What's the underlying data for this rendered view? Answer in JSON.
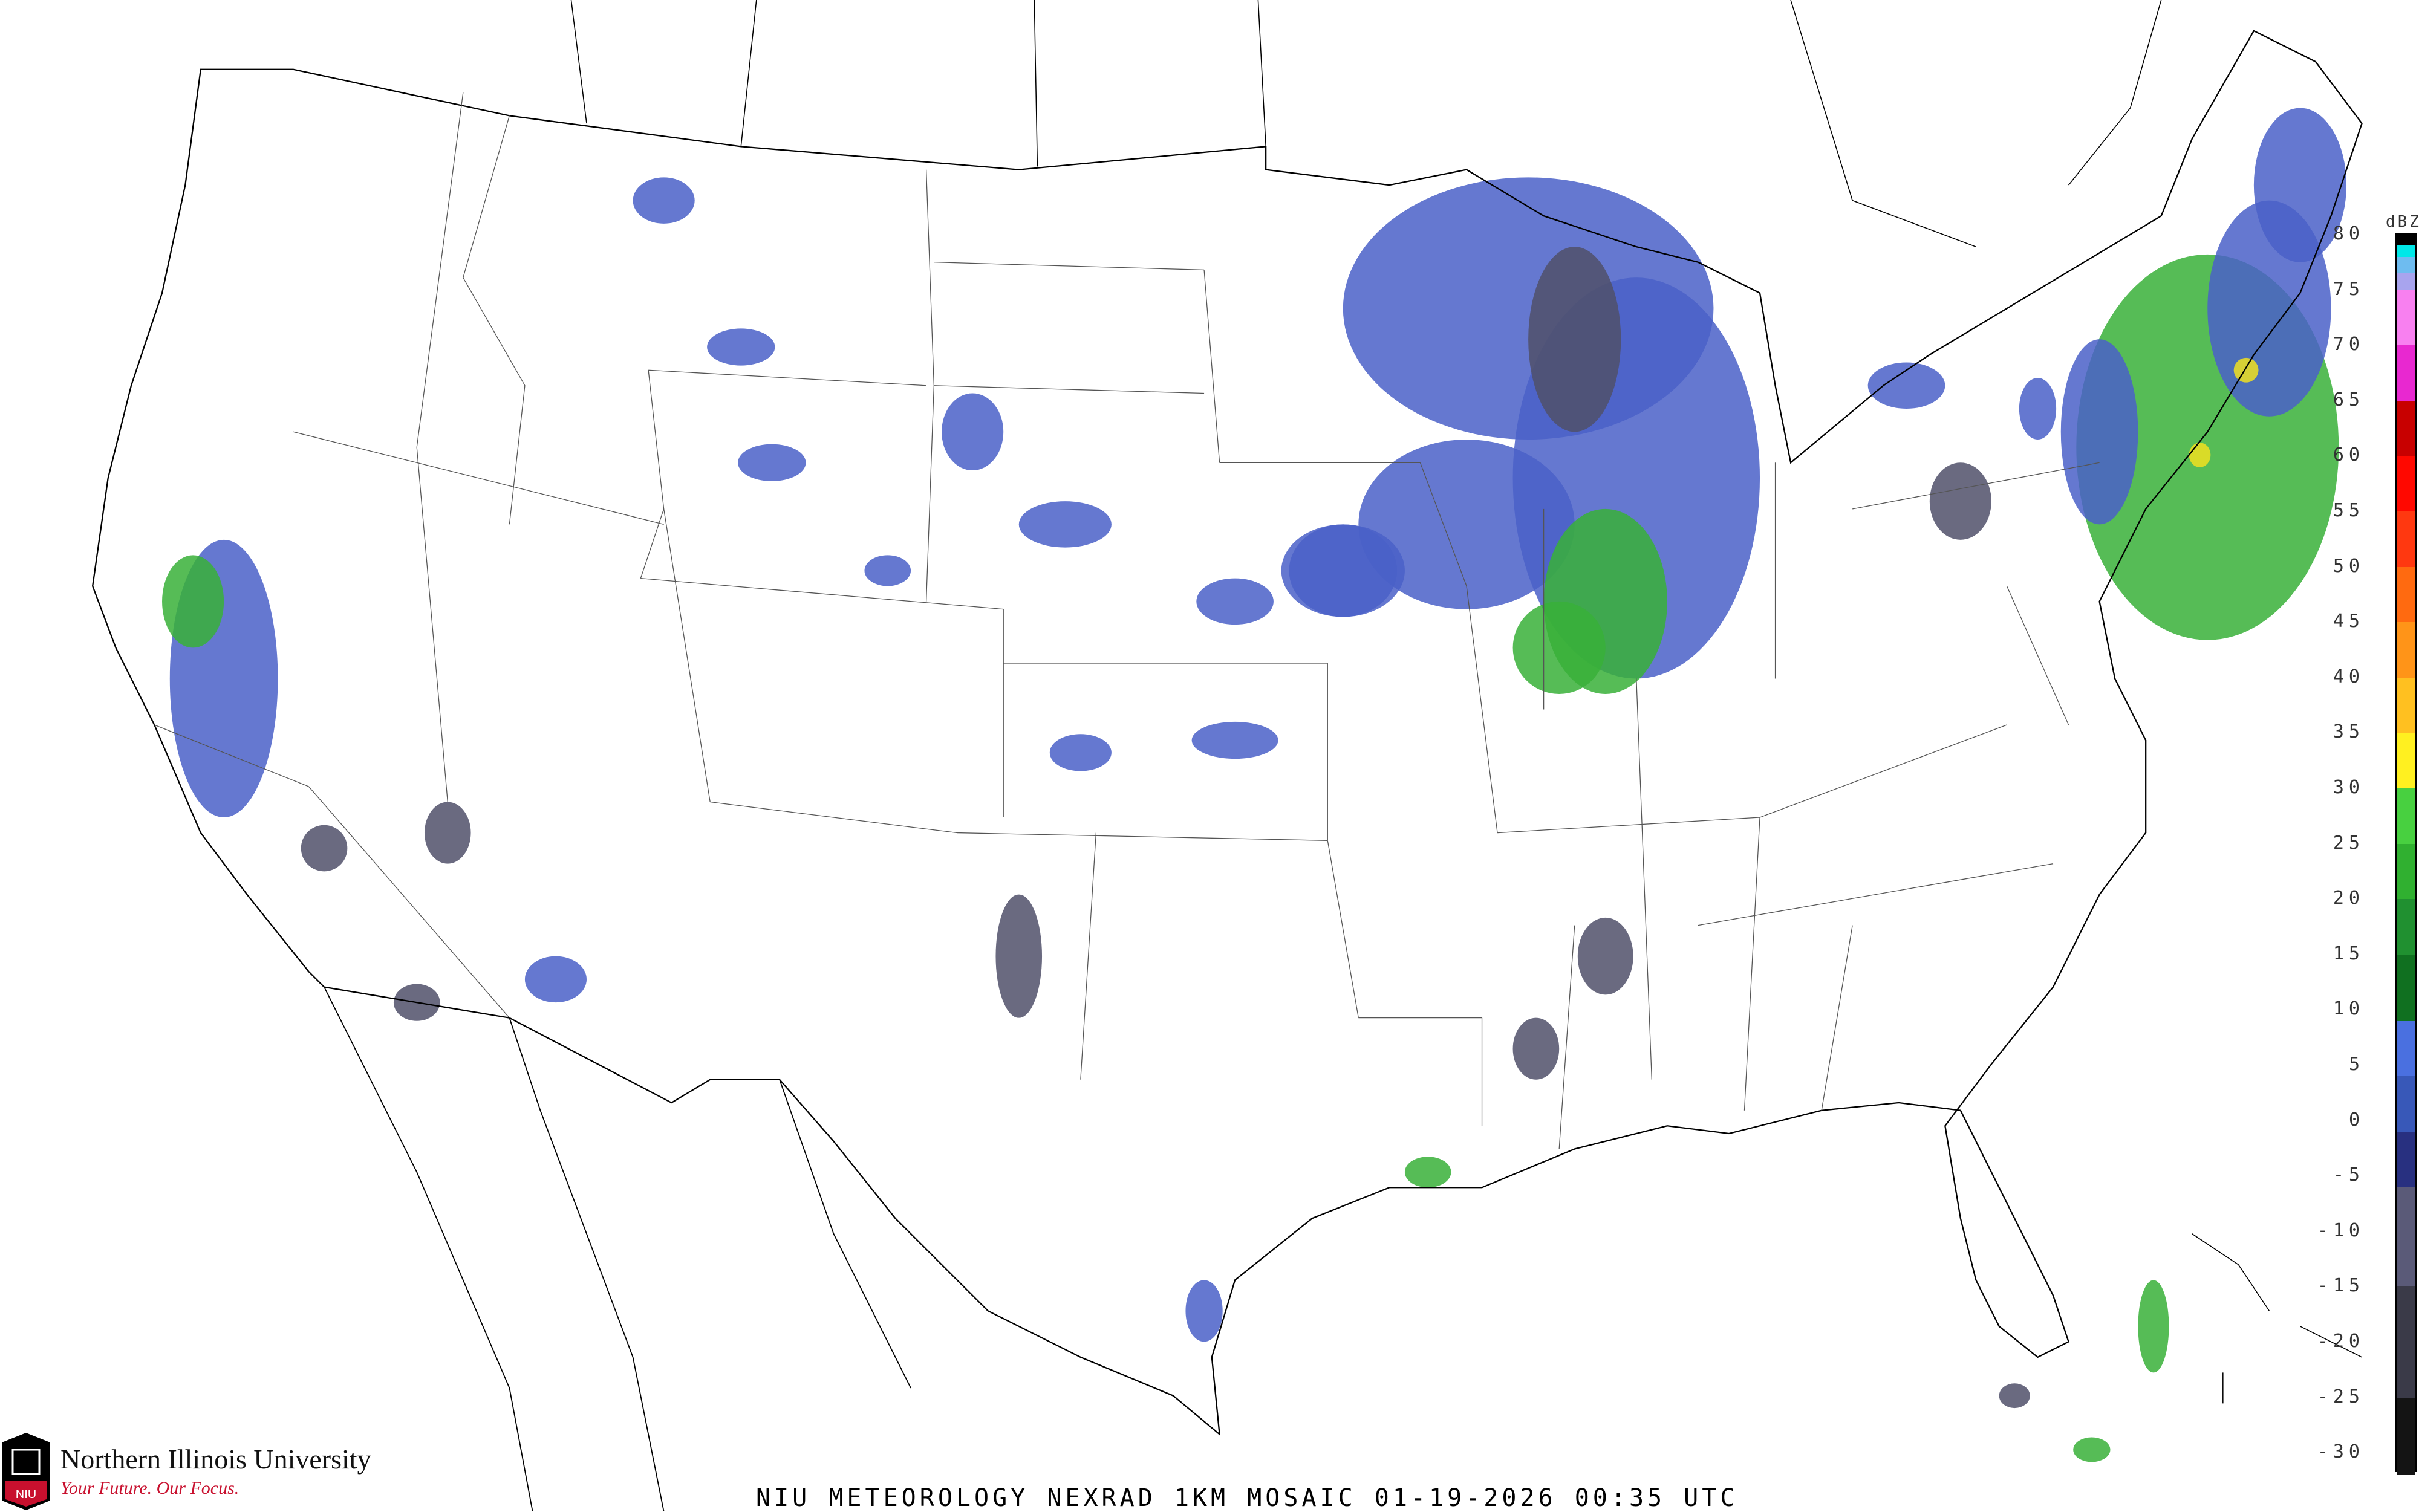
{
  "caption": "NIU METEOROLOGY NEXRAD 1KM MOSAIC  01-19-2026 00:35 UTC",
  "logo": {
    "name": "Northern Illinois University",
    "tagline": "Your Future. Our Focus.",
    "seal_text": "NIU"
  },
  "legend": {
    "unit": "dBZ",
    "ticks": [
      "80",
      "75",
      "70",
      "65",
      "60",
      "55",
      "50",
      "45",
      "40",
      "35",
      "30",
      "25",
      "20",
      "15",
      "10",
      "5",
      "0",
      "-5",
      "-10",
      "-15",
      "-20",
      "-25",
      "-30"
    ],
    "bands": [
      {
        "from": 80,
        "to": 79,
        "color": "#000000"
      },
      {
        "from": 79,
        "to": 78,
        "color": "#00e8e8"
      },
      {
        "from": 78,
        "to": 76.5,
        "color": "#6ebcf0"
      },
      {
        "from": 76.5,
        "to": 75,
        "color": "#a8a4ee"
      },
      {
        "from": 75,
        "to": 70,
        "color": "#f880f0"
      },
      {
        "from": 70,
        "to": 65,
        "color": "#e828d0"
      },
      {
        "from": 65,
        "to": 60,
        "color": "#c80000"
      },
      {
        "from": 60,
        "to": 55,
        "color": "#ff0800"
      },
      {
        "from": 55,
        "to": 50,
        "color": "#ff3810"
      },
      {
        "from": 50,
        "to": 45,
        "color": "#ff6a10"
      },
      {
        "from": 45,
        "to": 40,
        "color": "#ff9418"
      },
      {
        "from": 40,
        "to": 35,
        "color": "#ffc020"
      },
      {
        "from": 35,
        "to": 30,
        "color": "#fff020"
      },
      {
        "from": 30,
        "to": 25,
        "color": "#48d040"
      },
      {
        "from": 25,
        "to": 20,
        "color": "#30b030"
      },
      {
        "from": 20,
        "to": 15,
        "color": "#209030"
      },
      {
        "from": 15,
        "to": 9,
        "color": "#107020"
      },
      {
        "from": 9,
        "to": 4,
        "color": "#4a70e0"
      },
      {
        "from": 4,
        "to": -1,
        "color": "#3858b8"
      },
      {
        "from": -1,
        "to": -6,
        "color": "#283080"
      },
      {
        "from": -6,
        "to": -15,
        "color": "#5a5a78"
      },
      {
        "from": -15,
        "to": -25,
        "color": "#3a3a48"
      },
      {
        "from": -25,
        "to": -32,
        "color": "#141414"
      },
      {
        "from": -32,
        "to": -33,
        "color": "#ffffff"
      }
    ]
  },
  "colors": {
    "border": "#000000",
    "county": "#c8c8c8",
    "state": "#505050",
    "highway": "#c87850",
    "light_echo": "#4a60c8",
    "moderate_echo": "#38b038",
    "heavy_echo": "#f0e020",
    "clutter": "#50506a"
  }
}
